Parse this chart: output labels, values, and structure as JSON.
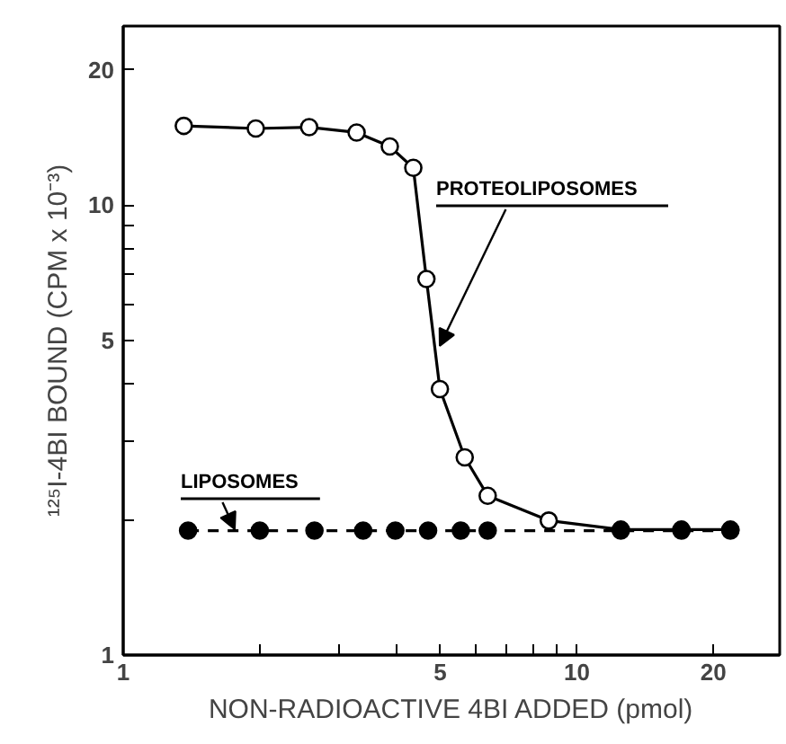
{
  "chart_data": {
    "type": "line",
    "xlabel": "NON-RADIOACTIVE 4BI ADDED (pmol)",
    "ylabel": "¹²⁵I-4BI BOUND (CPM x 10⁻³)",
    "log": "xy",
    "xlim": [
      1,
      28
    ],
    "ylim": [
      1,
      25
    ],
    "xticks": [
      1,
      {
        "value": 2,
        "label": null
      },
      {
        "value": 3,
        "label": null
      },
      {
        "value": 4,
        "label": null
      },
      5,
      {
        "value": 6,
        "label": null
      },
      {
        "value": 7,
        "label": null
      },
      {
        "value": 8,
        "label": null
      },
      {
        "value": 9,
        "label": null
      },
      10,
      20
    ],
    "yticks": [
      1,
      {
        "value": 2,
        "label": null
      },
      {
        "value": 3,
        "label": null
      },
      {
        "value": 4,
        "label": null
      },
      5,
      {
        "value": 6,
        "label": null
      },
      {
        "value": 7,
        "label": null
      },
      {
        "value": 8,
        "label": null
      },
      {
        "value": 9,
        "label": null
      },
      10,
      20
    ],
    "grid": false,
    "marker": "circle",
    "series": [
      {
        "name": "PROTEOLIPOSOMES",
        "color": "#000000",
        "line_style": "solid",
        "x": [
          1.36,
          1.96,
          2.57,
          3.27,
          3.87,
          4.36,
          4.66,
          4.99,
          5.66,
          6.36,
          8.67,
          12.5,
          17.0,
          21.8
        ],
        "values": [
          15.0,
          14.8,
          14.9,
          14.5,
          13.5,
          12.1,
          6.85,
          3.9,
          2.75,
          2.26,
          1.99,
          1.9,
          1.9,
          1.9
        ]
      },
      {
        "name": "LIPOSOMES",
        "color": "#000000",
        "line_style": "dashed",
        "x": [
          1.39,
          2.0,
          2.64,
          3.38,
          3.98,
          4.7,
          5.55,
          6.36,
          12.5,
          17.0,
          21.8
        ],
        "values": [
          1.89,
          1.89,
          1.89,
          1.89,
          1.89,
          1.89,
          1.89,
          1.89,
          1.89,
          1.89,
          1.89
        ]
      }
    ]
  }
}
